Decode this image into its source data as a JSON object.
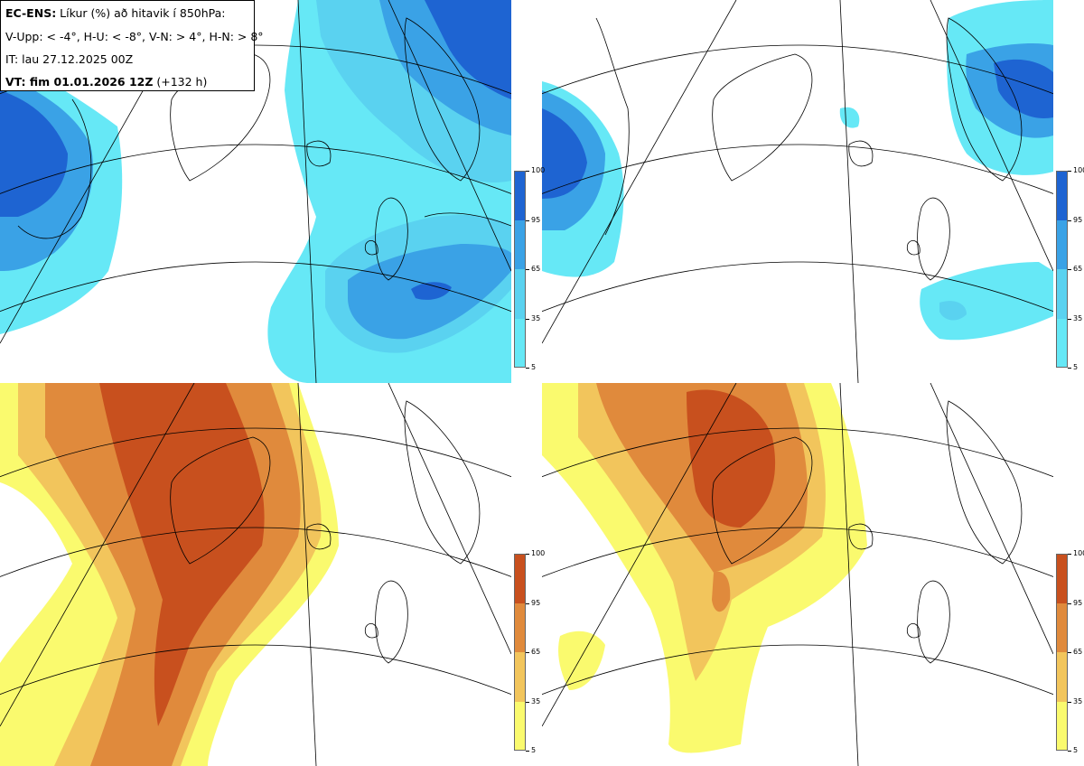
{
  "legend": {
    "line1_bold": "EC-ENS:",
    "line1_text": " Líkur (%) að hitavik í 850hPa:",
    "line2": "V-Upp: < -4°, H-U: < -8°, V-N: > 4°, H-N: > 8°",
    "line3": "IT: lau 27.12.2025 00Z",
    "line4_bold": "VT: fim 01.01.2026 12Z",
    "line4_text": " (+132 h)"
  },
  "panels": [
    {
      "id": "v-upp",
      "variable": "V-Upp",
      "colorscale": "blue"
    },
    {
      "id": "h-u",
      "variable": "H-U",
      "colorscale": "blue"
    },
    {
      "id": "v-n",
      "variable": "V-N",
      "colorscale": "orange"
    },
    {
      "id": "h-n",
      "variable": "H-N",
      "colorscale": "orange"
    }
  ],
  "colorbar": {
    "ticks": [
      "100",
      "95",
      "65",
      "35",
      "5"
    ],
    "blue_colors": [
      "#66e8f6",
      "#5ad2f0",
      "#3aa2e6",
      "#1e64d2"
    ],
    "orange_colors": [
      "#fafa6e",
      "#f2c55c",
      "#e08a3c",
      "#c8501e"
    ]
  }
}
